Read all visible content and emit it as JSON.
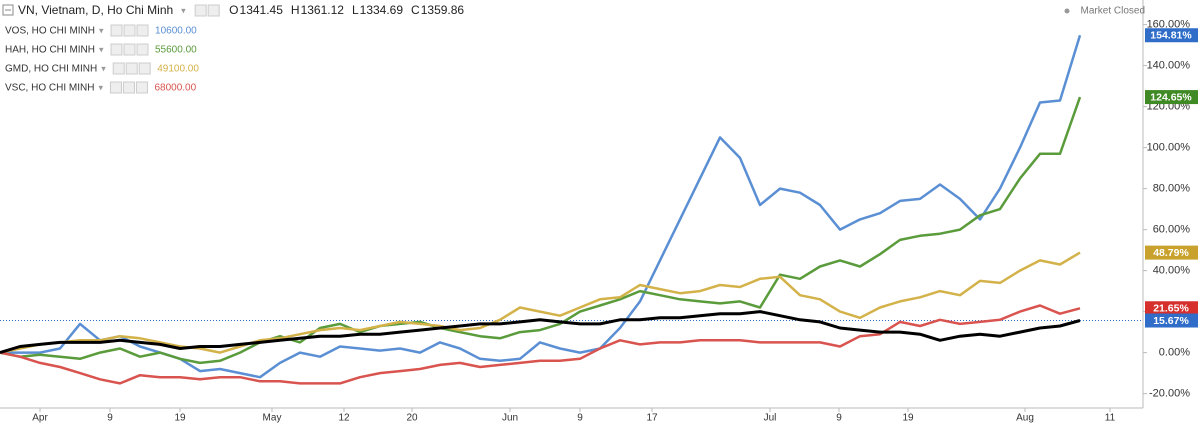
{
  "chart_data": {
    "type": "line",
    "title": "VN, Vietnam, D, Ho Chi Minh",
    "ohlc": [
      {
        "label": "O",
        "value": "1341.45"
      },
      {
        "label": "H",
        "value": "1361.12"
      },
      {
        "label": "L",
        "value": "1334.69"
      },
      {
        "label": "C",
        "value": "1359.86"
      }
    ],
    "status": "Market Closed",
    "x": [
      0,
      1,
      2,
      3,
      4,
      5,
      6,
      7,
      8,
      9,
      10,
      11,
      12,
      13,
      14,
      15,
      16,
      17,
      18,
      19,
      20,
      21,
      22,
      23,
      24,
      25,
      26,
      27,
      28,
      29,
      30,
      31,
      32,
      33,
      34,
      35,
      36,
      37,
      38,
      39,
      40,
      41,
      42,
      43,
      44,
      45,
      46,
      47,
      48,
      49,
      50,
      51,
      52,
      53,
      54
    ],
    "xlim": [
      0,
      57.15
    ],
    "xticks": [
      {
        "value": 2.0,
        "label": "Apr"
      },
      {
        "value": 5.5,
        "label": "9"
      },
      {
        "value": 9.0,
        "label": "19"
      },
      {
        "value": 13.6,
        "label": "May"
      },
      {
        "value": 17.2,
        "label": "12"
      },
      {
        "value": 20.6,
        "label": "20"
      },
      {
        "value": 25.5,
        "label": "Jun"
      },
      {
        "value": 29.0,
        "label": "9"
      },
      {
        "value": 32.6,
        "label": "17"
      },
      {
        "value": 38.5,
        "label": "Jul"
      },
      {
        "value": 41.95,
        "label": "9"
      },
      {
        "value": 45.4,
        "label": "19"
      },
      {
        "value": 51.25,
        "label": "Aug"
      },
      {
        "value": 55.5,
        "label": "11"
      }
    ],
    "ylim": [
      -27,
      172
    ],
    "yticks": [
      {
        "value": -20,
        "label": "-20.00%"
      },
      {
        "value": 0,
        "label": "0.00%"
      },
      {
        "value": 20,
        "label": "20.00%"
      },
      {
        "value": 40,
        "label": "40.00%"
      },
      {
        "value": 60,
        "label": "60.00%"
      },
      {
        "value": 80,
        "label": "80.00%"
      },
      {
        "value": 100,
        "label": "100.00%"
      },
      {
        "value": 120,
        "label": "120.00%"
      },
      {
        "value": 140,
        "label": "140.00%"
      },
      {
        "value": 160,
        "label": "160.00%"
      }
    ],
    "series": [
      {
        "name": "VOS, HO CHI MINH",
        "price": "10600.00",
        "color": "#5b8fd4",
        "label_color": "#2f6dc9",
        "end_label": "154.81%",
        "values": [
          0,
          0,
          0,
          2,
          14,
          6,
          8,
          3,
          0,
          -3,
          -9,
          -8,
          -10,
          -12,
          -5,
          0,
          -2,
          3,
          2,
          1,
          2,
          0,
          5,
          2,
          -3,
          -4,
          -3,
          5,
          2,
          0,
          2,
          12,
          25,
          45,
          65,
          85,
          105,
          95,
          72,
          80,
          78,
          72,
          60,
          65,
          68,
          74,
          75,
          82,
          75,
          65,
          80,
          100,
          122,
          123,
          154.81
        ]
      },
      {
        "name": "HAH, HO CHI MINH",
        "price": "55600.00",
        "color": "#5a9b3b",
        "label_color": "#3f8a24",
        "end_label": "124.65%",
        "values": [
          0,
          -2,
          -1,
          -2,
          -3,
          0,
          2,
          -2,
          0,
          -3,
          -5,
          -4,
          0,
          5,
          8,
          5,
          12,
          14,
          10,
          13,
          14,
          15,
          12,
          10,
          8,
          7,
          10,
          11,
          14,
          20,
          23,
          26,
          30,
          28,
          26,
          25,
          24,
          25,
          22,
          38,
          36,
          42,
          45,
          42,
          48,
          55,
          57,
          58,
          60,
          67,
          70,
          85,
          97,
          97,
          124.65
        ]
      },
      {
        "name": "GMD, HO CHI MINH",
        "price": "49100.00",
        "color": "#d4b24a",
        "label_color": "#c9a22e",
        "end_label": "48.79%",
        "values": [
          0,
          2,
          4,
          5,
          6,
          6,
          8,
          7,
          5,
          3,
          2,
          0,
          3,
          6,
          7,
          9,
          11,
          12,
          11,
          13,
          15,
          14,
          13,
          11,
          12,
          16,
          22,
          20,
          18,
          22,
          26,
          27,
          33,
          31,
          29,
          30,
          33,
          32,
          36,
          37,
          28,
          26,
          20,
          17,
          22,
          25,
          27,
          30,
          28,
          35,
          34,
          40,
          45,
          43,
          48.79
        ]
      },
      {
        "name": "VSC, HO CHI MINH",
        "price": "68000.00",
        "color": "#d9534f",
        "label_color": "#d5302b",
        "end_label": "21.65%",
        "values": [
          0,
          -2,
          -5,
          -7,
          -10,
          -13,
          -15,
          -11,
          -12,
          -12,
          -13,
          -12,
          -12,
          -14,
          -14,
          -15,
          -15,
          -15,
          -12,
          -10,
          -9,
          -8,
          -6,
          -5,
          -7,
          -6,
          -5,
          -4,
          -4,
          -3,
          2,
          6,
          4,
          5,
          5,
          6,
          6,
          6,
          5,
          5,
          5,
          5,
          3,
          8,
          9,
          15,
          13,
          16,
          14,
          15,
          16,
          20,
          23,
          19,
          21.65
        ]
      },
      {
        "name": "VN",
        "color": "#000000",
        "label_color": "#2f6dc9",
        "end_label": "15.67%",
        "main": true,
        "values": [
          0,
          3,
          4,
          5,
          5,
          5,
          6,
          5,
          4,
          2,
          3,
          3,
          4,
          5,
          6,
          7,
          8,
          8,
          9,
          9,
          10,
          11,
          12,
          13,
          14,
          14,
          15,
          16,
          15,
          14,
          14,
          16,
          16,
          17,
          17,
          18,
          19,
          19,
          20,
          18,
          16,
          15,
          12,
          11,
          10,
          10,
          9,
          6,
          8,
          9,
          8,
          10,
          12,
          13,
          15.67
        ]
      }
    ]
  }
}
